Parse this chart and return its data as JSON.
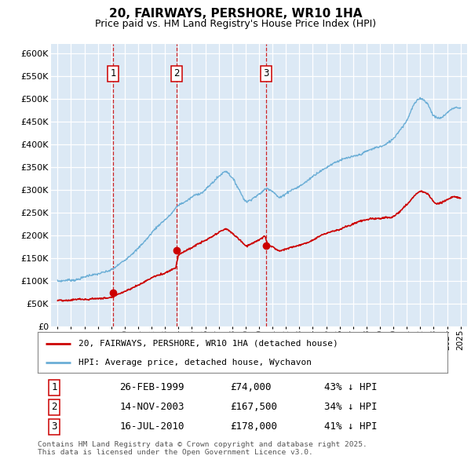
{
  "title": "20, FAIRWAYS, PERSHORE, WR10 1HA",
  "subtitle": "Price paid vs. HM Land Registry's House Price Index (HPI)",
  "plot_bg_color": "#dce9f5",
  "ylim": [
    0,
    620000
  ],
  "yticks": [
    0,
    50000,
    100000,
    150000,
    200000,
    250000,
    300000,
    350000,
    400000,
    450000,
    500000,
    550000,
    600000
  ],
  "ytick_labels": [
    "£0",
    "£50K",
    "£100K",
    "£150K",
    "£200K",
    "£250K",
    "£300K",
    "£350K",
    "£400K",
    "£450K",
    "£500K",
    "£550K",
    "£600K"
  ],
  "hpi_color": "#6baed6",
  "price_color": "#cc0000",
  "dashed_color": "#cc0000",
  "transaction_dates": [
    1999.15,
    2003.87,
    2010.54
  ],
  "transaction_prices": [
    74000,
    167500,
    178000
  ],
  "transaction_labels": [
    "1",
    "2",
    "3"
  ],
  "transaction_info": [
    [
      "1",
      "26-FEB-1999",
      "£74,000",
      "43% ↓ HPI"
    ],
    [
      "2",
      "14-NOV-2003",
      "£167,500",
      "34% ↓ HPI"
    ],
    [
      "3",
      "16-JUL-2010",
      "£178,000",
      "41% ↓ HPI"
    ]
  ],
  "legend_label_price": "20, FAIRWAYS, PERSHORE, WR10 1HA (detached house)",
  "legend_label_hpi": "HPI: Average price, detached house, Wychavon",
  "footer": "Contains HM Land Registry data © Crown copyright and database right 2025.\nThis data is licensed under the Open Government Licence v3.0.",
  "xmin": 1994.5,
  "xmax": 2025.5
}
